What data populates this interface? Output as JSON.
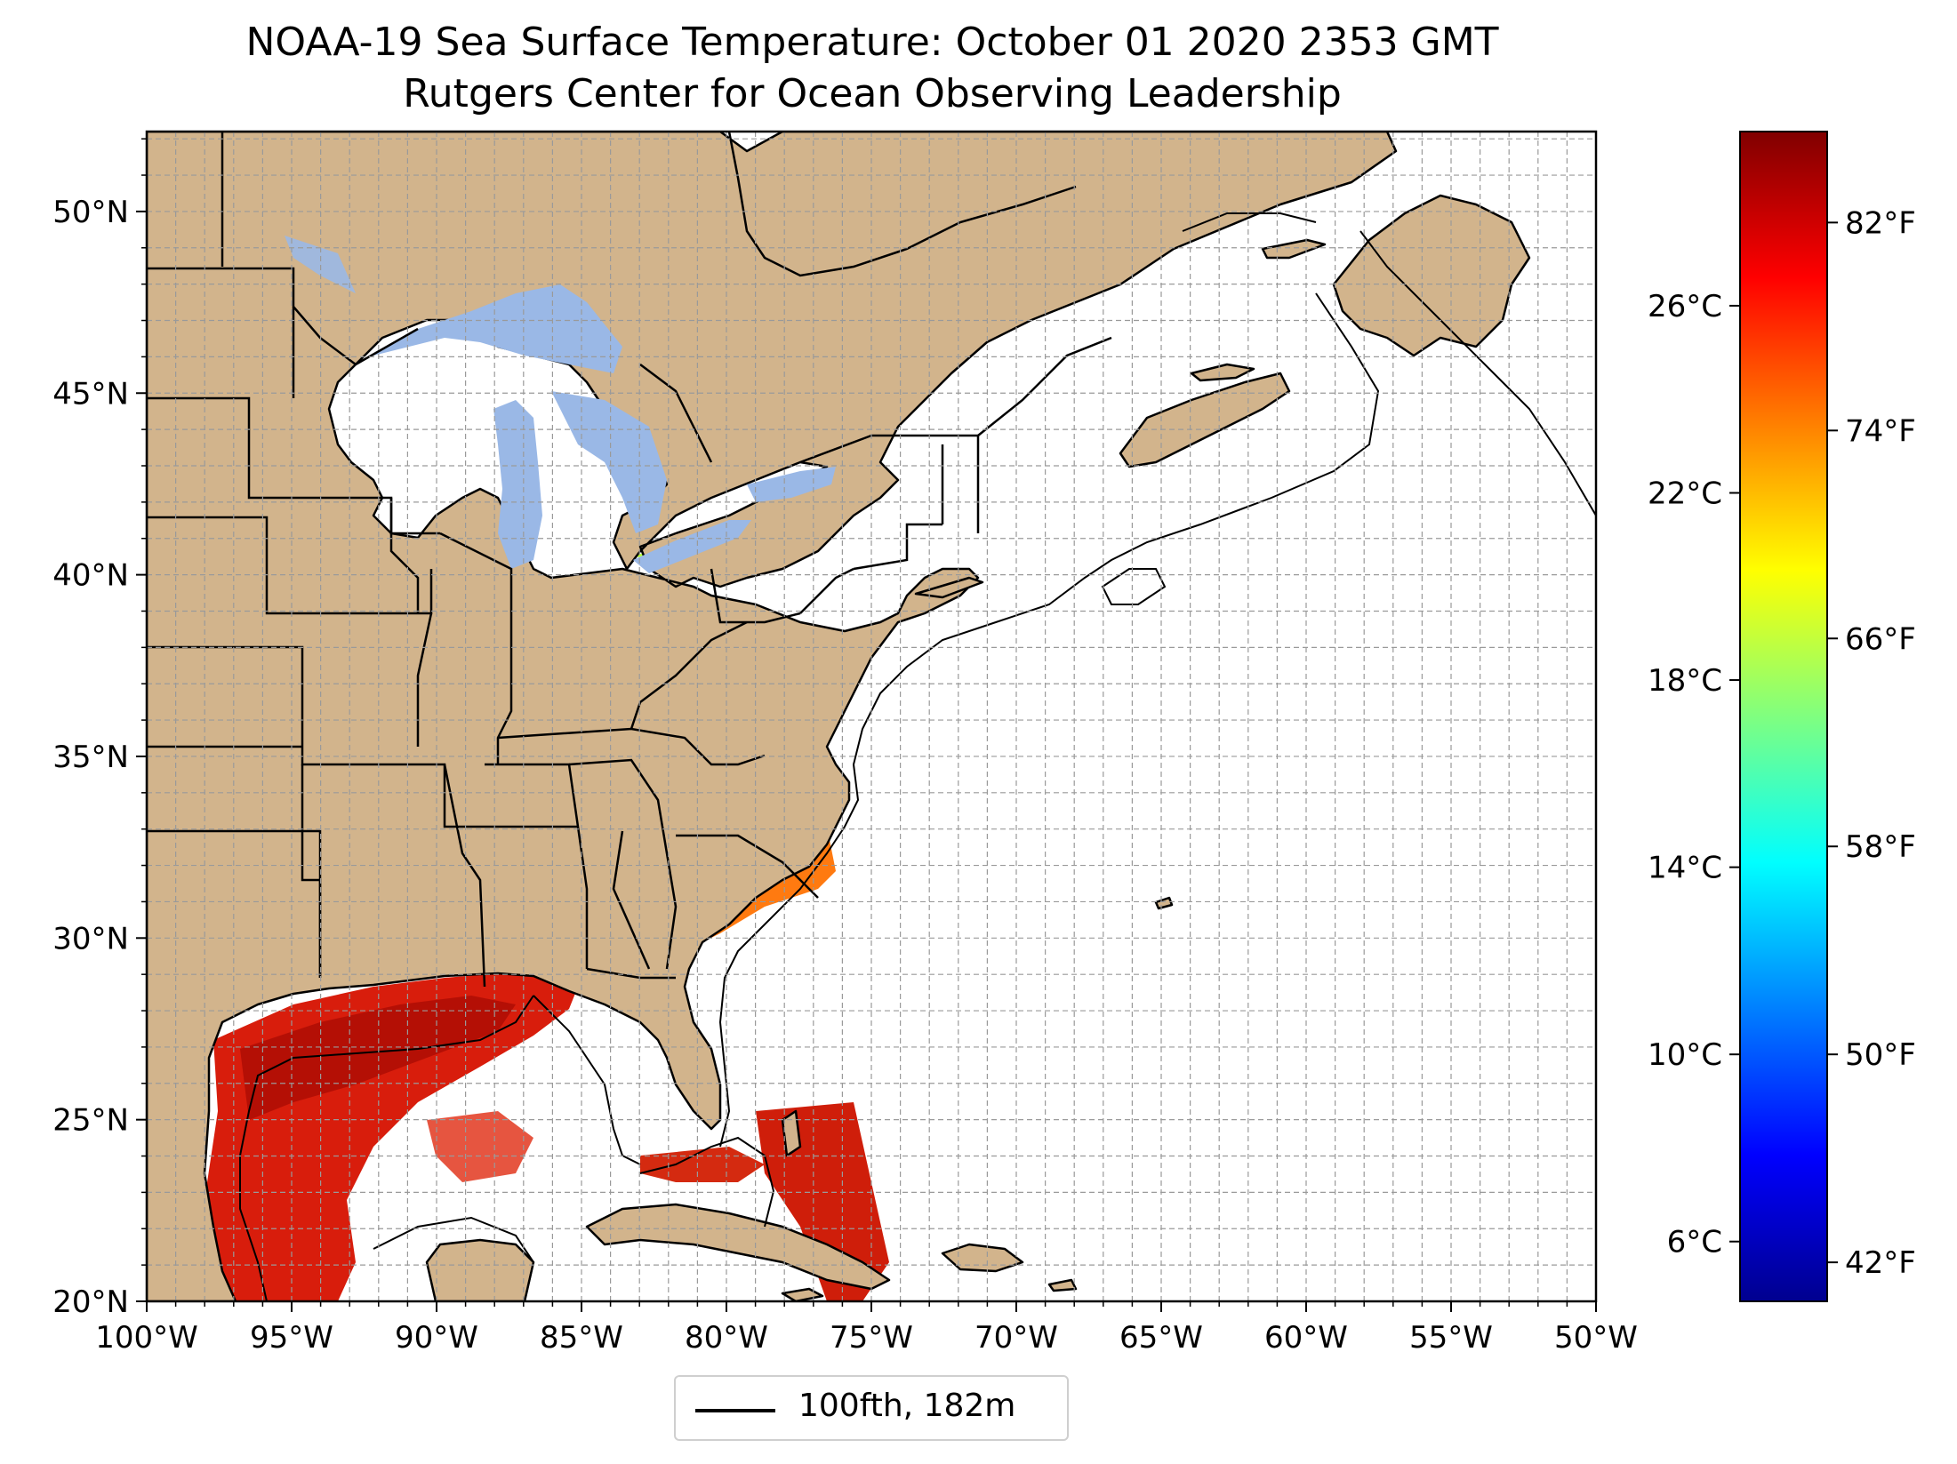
{
  "title": {
    "line1": "NOAA-19 Sea Surface Temperature: October 01 2020 2353 GMT",
    "line2": "Rutgers Center for Ocean Observing Leadership"
  },
  "map": {
    "lon_range": [
      -100,
      -50
    ],
    "lat_range": [
      20,
      52.2
    ],
    "lon_ticks": [
      {
        "value": -100,
        "label": "100°W"
      },
      {
        "value": -95,
        "label": "95°W"
      },
      {
        "value": -90,
        "label": "90°W"
      },
      {
        "value": -85,
        "label": "85°W"
      },
      {
        "value": -80,
        "label": "80°W"
      },
      {
        "value": -75,
        "label": "75°W"
      },
      {
        "value": -70,
        "label": "70°W"
      },
      {
        "value": -65,
        "label": "65°W"
      },
      {
        "value": -60,
        "label": "60°W"
      },
      {
        "value": -55,
        "label": "55°W"
      },
      {
        "value": -50,
        "label": "50°W"
      }
    ],
    "lat_ticks": [
      {
        "value": 20,
        "label": "20°N"
      },
      {
        "value": 25,
        "label": "25°N"
      },
      {
        "value": 30,
        "label": "30°N"
      },
      {
        "value": 35,
        "label": "35°N"
      },
      {
        "value": 40,
        "label": "40°N"
      },
      {
        "value": 45,
        "label": "45°N"
      },
      {
        "value": 50,
        "label": "50°N"
      }
    ],
    "grid": "dashed, 1 degree",
    "land_color": "#d2b48c",
    "lake_color": "#9ab8e6"
  },
  "colorbar": {
    "colormap": "jet",
    "celsius_ticks": [
      {
        "value": 6,
        "label": "6°C"
      },
      {
        "value": 10,
        "label": "10°C"
      },
      {
        "value": 14,
        "label": "14°C"
      },
      {
        "value": 18,
        "label": "18°C"
      },
      {
        "value": 22,
        "label": "22°C"
      },
      {
        "value": 26,
        "label": "26°C"
      }
    ],
    "fahrenheit_ticks": [
      {
        "value": 42,
        "label": "42°F"
      },
      {
        "value": 50,
        "label": "50°F"
      },
      {
        "value": 58,
        "label": "58°F"
      },
      {
        "value": 66,
        "label": "66°F"
      },
      {
        "value": 74,
        "label": "74°F"
      },
      {
        "value": 82,
        "label": "82°F"
      }
    ],
    "range_f": [
      40.5,
      85.5
    ]
  },
  "legend": {
    "label": "100fth, 182m"
  }
}
